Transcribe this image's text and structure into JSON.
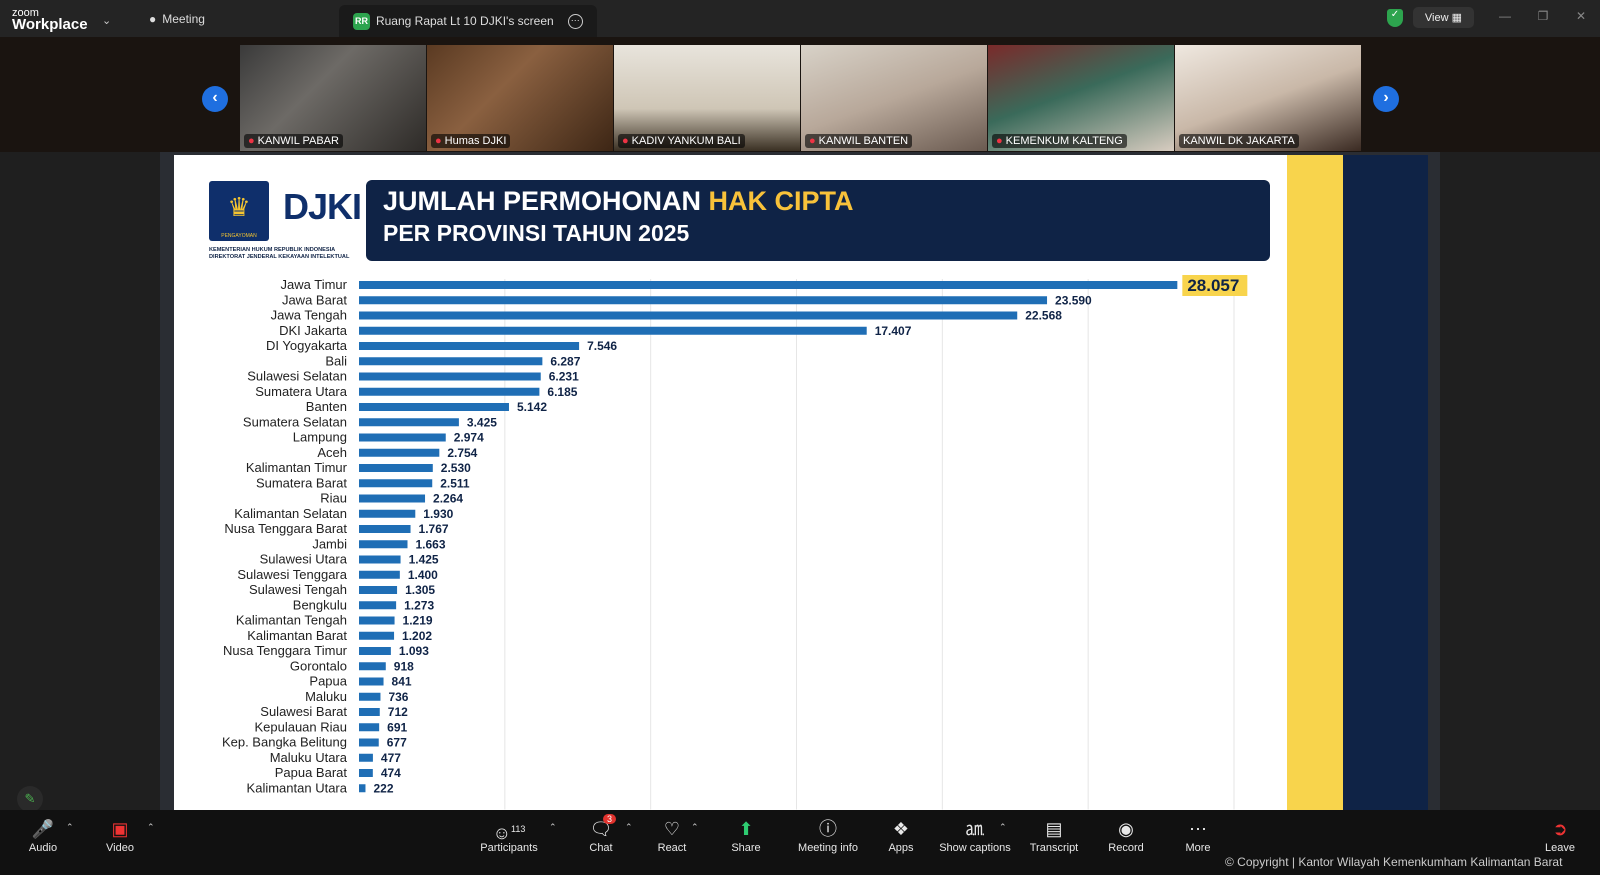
{
  "topbar": {
    "brand_small": "zoom",
    "brand_large": "Workplace",
    "meeting_tab": "Meeting",
    "share_tab_initials": "RR",
    "share_tab": "Ruang Rapat Lt 10 DJKI's screen",
    "view_label": "View"
  },
  "gallery": [
    {
      "name": "KANWIL PABAR",
      "muted": true
    },
    {
      "name": "Humas DJKI",
      "muted": true
    },
    {
      "name": "KADIV YANKUM BALI",
      "muted": true
    },
    {
      "name": "KANWIL BANTEN",
      "muted": true
    },
    {
      "name": "KEMENKUM KALTENG",
      "muted": true
    },
    {
      "name": "KANWIL DK JAKARTA",
      "muted": false
    }
  ],
  "slide": {
    "title_part1": "JUMLAH PERMOHONAN",
    "title_highlight": "HAK CIPTA",
    "title_line2": "PER PROVINSI TAHUN 2025",
    "org_line1": "KEMENTERIAN HUKUM REPUBLIK INDONESIA",
    "org_line2": "DIREKTORAT JENDERAL KEKAYAAN INTELEKTUAL",
    "logo_text": "DJKI",
    "emblem_caption": "PENGAYOMAN"
  },
  "chart_data": {
    "type": "bar",
    "orientation": "horizontal",
    "title": "JUMLAH PERMOHONAN HAK CIPTA PER PROVINSI TAHUN 2025",
    "categories": [
      "Jawa Timur",
      "Jawa Barat",
      "Jawa Tengah",
      "DKI Jakarta",
      "DI Yogyakarta",
      "Bali",
      "Sulawesi Selatan",
      "Sumatera Utara",
      "Banten",
      "Sumatera Selatan",
      "Lampung",
      "Aceh",
      "Kalimantan Timur",
      "Sumatera Barat",
      "Riau",
      "Kalimantan Selatan",
      "Nusa Tenggara Barat",
      "Jambi",
      "Sulawesi Utara",
      "Sulawesi Tenggara",
      "Sulawesi Tengah",
      "Bengkulu",
      "Kalimantan Tengah",
      "Kalimantan Barat",
      "Nusa Tenggara Timur",
      "Gorontalo",
      "Papua",
      "Maluku",
      "Sulawesi Barat",
      "Kepulauan Riau",
      "Kep. Bangka Belitung",
      "Maluku Utara",
      "Papua Barat",
      "Kalimantan Utara"
    ],
    "values": [
      28057,
      23590,
      22568,
      17407,
      7546,
      6287,
      6231,
      6185,
      5142,
      3425,
      2974,
      2754,
      2530,
      2511,
      2264,
      1930,
      1767,
      1663,
      1425,
      1400,
      1305,
      1273,
      1219,
      1202,
      1093,
      918,
      841,
      736,
      712,
      691,
      677,
      477,
      474,
      222
    ],
    "value_labels": [
      "28.057",
      "23.590",
      "22.568",
      "17.407",
      "7.546",
      "6.287",
      "6.231",
      "6.185",
      "5.142",
      "3.425",
      "2.974",
      "2.754",
      "2.530",
      "2.511",
      "2.264",
      "1.930",
      "1.767",
      "1.663",
      "1.425",
      "1.400",
      "1.305",
      "1.273",
      "1.219",
      "1.202",
      "1.093",
      "918",
      "841",
      "736",
      "712",
      "691",
      "677",
      "477",
      "474",
      "222"
    ],
    "xlim": [
      0,
      30000
    ],
    "x_ticks": [
      "-",
      "5.000",
      "10.000",
      "15.000",
      "20.000",
      "25.000",
      "30.000"
    ],
    "grid": true,
    "bar_color": "#1f6eb5",
    "highlight_color": "#f8d44c"
  },
  "toolbar": {
    "audio": "Audio",
    "video": "Video",
    "participants": "Participants",
    "participants_count": "113",
    "chat": "Chat",
    "chat_badge": "3",
    "react": "React",
    "share": "Share",
    "meeting_info": "Meeting info",
    "apps": "Apps",
    "captions": "Show captions",
    "transcript": "Transcript",
    "record": "Record",
    "more": "More",
    "leave": "Leave"
  },
  "copyright": "© Copyright | Kantor Wilayah Kemenkumham Kalimantan Barat"
}
